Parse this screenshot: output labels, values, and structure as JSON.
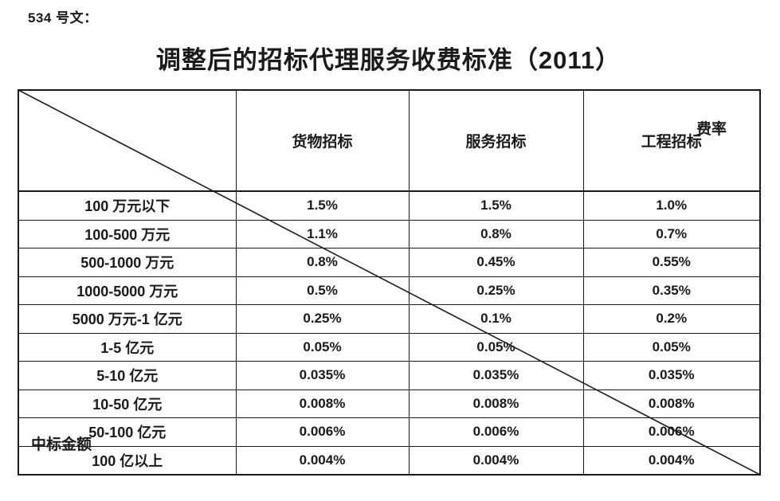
{
  "page": {
    "doc_number": "534 号文：",
    "title": "调整后的招标代理服务收费标准（2011）"
  },
  "table": {
    "corner": {
      "top_right": "费率",
      "bottom_left": "中标金额"
    },
    "columns": [
      "货物招标",
      "服务招标",
      "工程招标"
    ],
    "rows": [
      {
        "label": "100 万元以下",
        "values": [
          "1.5%",
          "1.5%",
          "1.0%"
        ]
      },
      {
        "label": "100-500 万元",
        "values": [
          "1.1%",
          "0.8%",
          "0.7%"
        ]
      },
      {
        "label": "500-1000 万元",
        "values": [
          "0.8%",
          "0.45%",
          "0.55%"
        ]
      },
      {
        "label": "1000-5000 万元",
        "values": [
          "0.5%",
          "0.25%",
          "0.35%"
        ]
      },
      {
        "label": "5000 万元-1 亿元",
        "values": [
          "0.25%",
          "0.1%",
          "0.2%"
        ]
      },
      {
        "label": "1-5 亿元",
        "values": [
          "0.05%",
          "0.05%",
          "0.05%"
        ]
      },
      {
        "label": "5-10 亿元",
        "values": [
          "0.035%",
          "0.035%",
          "0.035%"
        ]
      },
      {
        "label": "10-50 亿元",
        "values": [
          "0.008%",
          "0.008%",
          "0.008%"
        ]
      },
      {
        "label": "50-100 亿元",
        "values": [
          "0.006%",
          "0.006%",
          "0.006%"
        ]
      },
      {
        "label": "100 亿以上",
        "values": [
          "0.004%",
          "0.004%",
          "0.004%"
        ]
      }
    ]
  },
  "colors": {
    "text": "#1a1a1a",
    "border": "#1a1a1a",
    "background": "#ffffff"
  }
}
